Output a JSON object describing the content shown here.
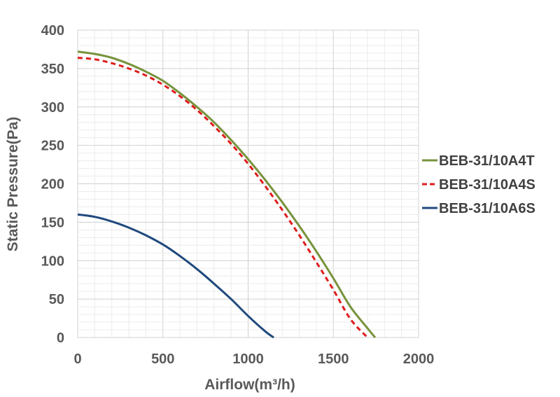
{
  "chart_data": {
    "type": "line",
    "title": "",
    "xlabel": "Airflow(m³/h)",
    "ylabel": "Static Pressure(Pa)",
    "xlim": [
      0,
      2000
    ],
    "ylim": [
      0,
      400
    ],
    "x_ticks": [
      0,
      500,
      1000,
      1500,
      2000
    ],
    "y_ticks": [
      0,
      50,
      100,
      150,
      200,
      250,
      300,
      350,
      400
    ],
    "grid": true,
    "legend_position": "right",
    "series": [
      {
        "name": "BEB-31/10A4T",
        "color": "#77933c",
        "line_style": "solid",
        "x": [
          0,
          100,
          200,
          300,
          400,
          500,
          600,
          700,
          800,
          900,
          1000,
          1100,
          1200,
          1300,
          1400,
          1500,
          1600,
          1700,
          1745
        ],
        "y": [
          372,
          369,
          364,
          356,
          346,
          334,
          318,
          300,
          280,
          257,
          232,
          205,
          176,
          145,
          112,
          77,
          40,
          12,
          0
        ]
      },
      {
        "name": "BEB-31/10A4S",
        "color": "#e01c1c",
        "line_style": "dashed",
        "x": [
          0,
          100,
          200,
          300,
          400,
          500,
          600,
          700,
          800,
          900,
          1000,
          1100,
          1200,
          1300,
          1400,
          1500,
          1600,
          1700
        ],
        "y": [
          364,
          362,
          357,
          350,
          341,
          329,
          314,
          296,
          275,
          252,
          226,
          197,
          166,
          133,
          98,
          62,
          24,
          0
        ]
      },
      {
        "name": "BEB-31/10A6S",
        "color": "#1f497d",
        "line_style": "solid",
        "x": [
          0,
          100,
          200,
          300,
          400,
          500,
          600,
          700,
          800,
          900,
          1000,
          1100,
          1150
        ],
        "y": [
          160,
          157,
          151,
          143,
          133,
          121,
          106,
          89,
          70,
          50,
          28,
          8,
          0
        ]
      }
    ]
  }
}
